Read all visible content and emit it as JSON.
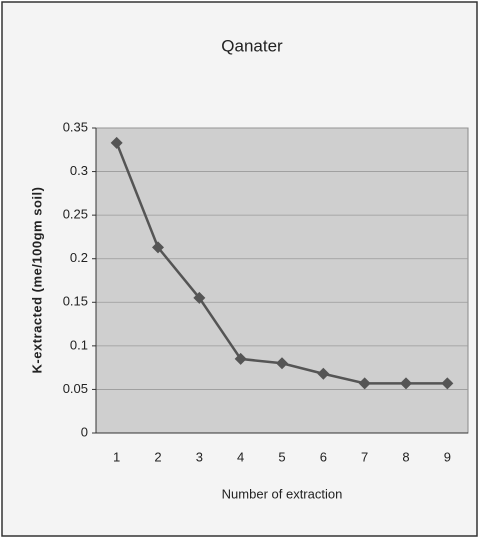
{
  "chart_data": {
    "type": "line",
    "title": "Qanater",
    "x_label": "Number of extraction",
    "y_label": "K-extracted (me/100gm soil)",
    "categories": [
      "1",
      "2",
      "3",
      "4",
      "5",
      "6",
      "7",
      "8",
      "9"
    ],
    "values": [
      0.333,
      0.213,
      0.155,
      0.085,
      0.08,
      0.068,
      0.057,
      0.057,
      0.057
    ],
    "color": "#555555",
    "ylim": [
      0,
      0.35
    ],
    "yticks": [
      0,
      0.05,
      0.1,
      0.15,
      0.2,
      0.25,
      0.3,
      0.35
    ],
    "grid": true
  }
}
